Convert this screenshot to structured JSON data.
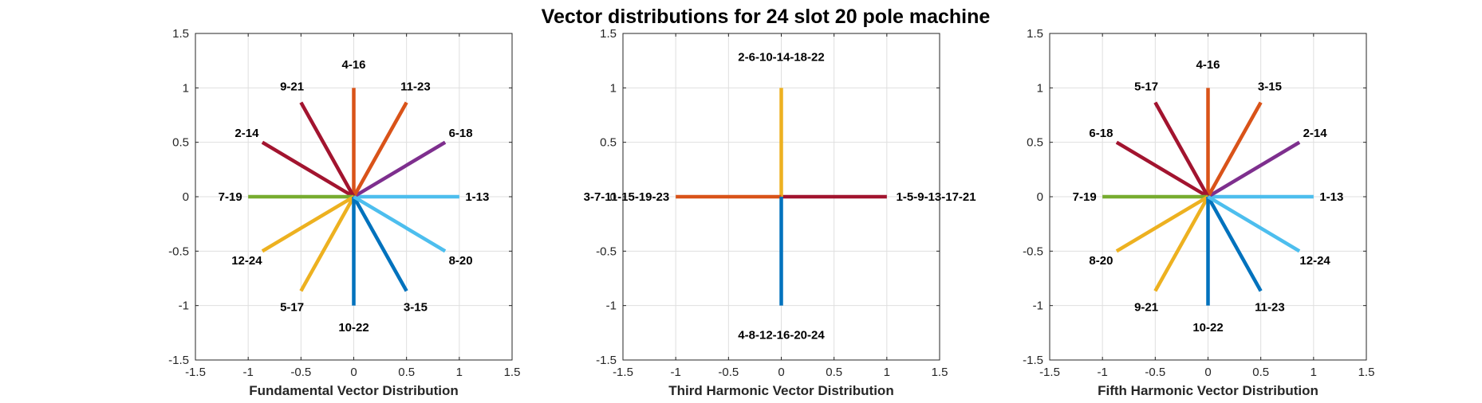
{
  "figure_title": "Vector distributions for 24 slot 20 pole machine",
  "colors": {
    "blue": "#0072BD",
    "orange": "#D95319",
    "yellow": "#EDB120",
    "purple": "#7E2F8E",
    "green": "#77AC30",
    "light_blue": "#4DBEEE",
    "dark_red": "#A2142F"
  },
  "chart_data": [
    {
      "type": "line",
      "title": "",
      "xlabel": "Fundamental Vector Distribution",
      "ylabel": "",
      "xlim": [
        -1.5,
        1.5
      ],
      "ylim": [
        -1.5,
        1.5
      ],
      "xticks": [
        "-1.5",
        "-1",
        "-0.5",
        "0",
        "0.5",
        "1",
        "1.5"
      ],
      "yticks": [
        "-1.5",
        "-1",
        "-0.5",
        "0",
        "0.5",
        "1",
        "1.5"
      ],
      "grid": true,
      "series": [
        {
          "label": "1-13",
          "x": 1.0,
          "y": 0.0,
          "color": "#4DBEEE"
        },
        {
          "label": "6-18",
          "x": 0.866,
          "y": 0.5,
          "color": "#7E2F8E"
        },
        {
          "label": "11-23",
          "x": 0.5,
          "y": 0.866,
          "color": "#D95319"
        },
        {
          "label": "4-16",
          "x": 0.0,
          "y": 1.0,
          "color": "#D95319"
        },
        {
          "label": "9-21",
          "x": -0.5,
          "y": 0.866,
          "color": "#A2142F"
        },
        {
          "label": "2-14",
          "x": -0.866,
          "y": 0.5,
          "color": "#A2142F"
        },
        {
          "label": "7-19",
          "x": -1.0,
          "y": 0.0,
          "color": "#77AC30"
        },
        {
          "label": "12-24",
          "x": -0.866,
          "y": -0.5,
          "color": "#EDB120"
        },
        {
          "label": "5-17",
          "x": -0.5,
          "y": -0.866,
          "color": "#EDB120"
        },
        {
          "label": "10-22",
          "x": 0.0,
          "y": -1.0,
          "color": "#0072BD"
        },
        {
          "label": "3-15",
          "x": 0.5,
          "y": -0.866,
          "color": "#0072BD"
        },
        {
          "label": "8-20",
          "x": 0.866,
          "y": -0.5,
          "color": "#4DBEEE"
        }
      ]
    },
    {
      "type": "line",
      "title": "",
      "xlabel": "Third Harmonic Vector Distribution",
      "ylabel": "",
      "xlim": [
        -1.5,
        1.5
      ],
      "ylim": [
        -1.5,
        1.5
      ],
      "xticks": [
        "-1.5",
        "-1",
        "-0.5",
        "0",
        "0.5",
        "1",
        "1.5"
      ],
      "yticks": [
        "-1.5",
        "-1",
        "-0.5",
        "0",
        "0.5",
        "1",
        "1.5"
      ],
      "grid": true,
      "series": [
        {
          "label": "1-5-9-13-17-21",
          "x": 1.0,
          "y": 0.0,
          "color": "#A2142F"
        },
        {
          "label": "2-6-10-14-18-22",
          "x": 0.0,
          "y": 1.0,
          "color": "#EDB120"
        },
        {
          "label": "3-7-11-15-19-23",
          "x": -1.0,
          "y": 0.0,
          "color": "#D95319"
        },
        {
          "label": "4-8-12-16-20-24",
          "x": 0.0,
          "y": -1.0,
          "color": "#0072BD"
        }
      ]
    },
    {
      "type": "line",
      "title": "",
      "xlabel": "Fifth Harmonic Vector Distribution",
      "ylabel": "",
      "xlim": [
        -1.5,
        1.5
      ],
      "ylim": [
        -1.5,
        1.5
      ],
      "xticks": [
        "-1.5",
        "-1",
        "-0.5",
        "0",
        "0.5",
        "1",
        "1.5"
      ],
      "yticks": [
        "-1.5",
        "-1",
        "-0.5",
        "0",
        "0.5",
        "1",
        "1.5"
      ],
      "grid": true,
      "series": [
        {
          "label": "1-13",
          "x": 1.0,
          "y": 0.0,
          "color": "#4DBEEE"
        },
        {
          "label": "2-14",
          "x": 0.866,
          "y": 0.5,
          "color": "#7E2F8E"
        },
        {
          "label": "3-15",
          "x": 0.5,
          "y": 0.866,
          "color": "#D95319"
        },
        {
          "label": "4-16",
          "x": 0.0,
          "y": 1.0,
          "color": "#D95319"
        },
        {
          "label": "5-17",
          "x": -0.5,
          "y": 0.866,
          "color": "#A2142F"
        },
        {
          "label": "6-18",
          "x": -0.866,
          "y": 0.5,
          "color": "#A2142F"
        },
        {
          "label": "7-19",
          "x": -1.0,
          "y": 0.0,
          "color": "#77AC30"
        },
        {
          "label": "8-20",
          "x": -0.866,
          "y": -0.5,
          "color": "#EDB120"
        },
        {
          "label": "9-21",
          "x": -0.5,
          "y": -0.866,
          "color": "#EDB120"
        },
        {
          "label": "10-22",
          "x": 0.0,
          "y": -1.0,
          "color": "#0072BD"
        },
        {
          "label": "11-23",
          "x": 0.5,
          "y": -0.866,
          "color": "#0072BD"
        },
        {
          "label": "12-24",
          "x": 0.866,
          "y": -0.5,
          "color": "#4DBEEE"
        }
      ]
    }
  ]
}
